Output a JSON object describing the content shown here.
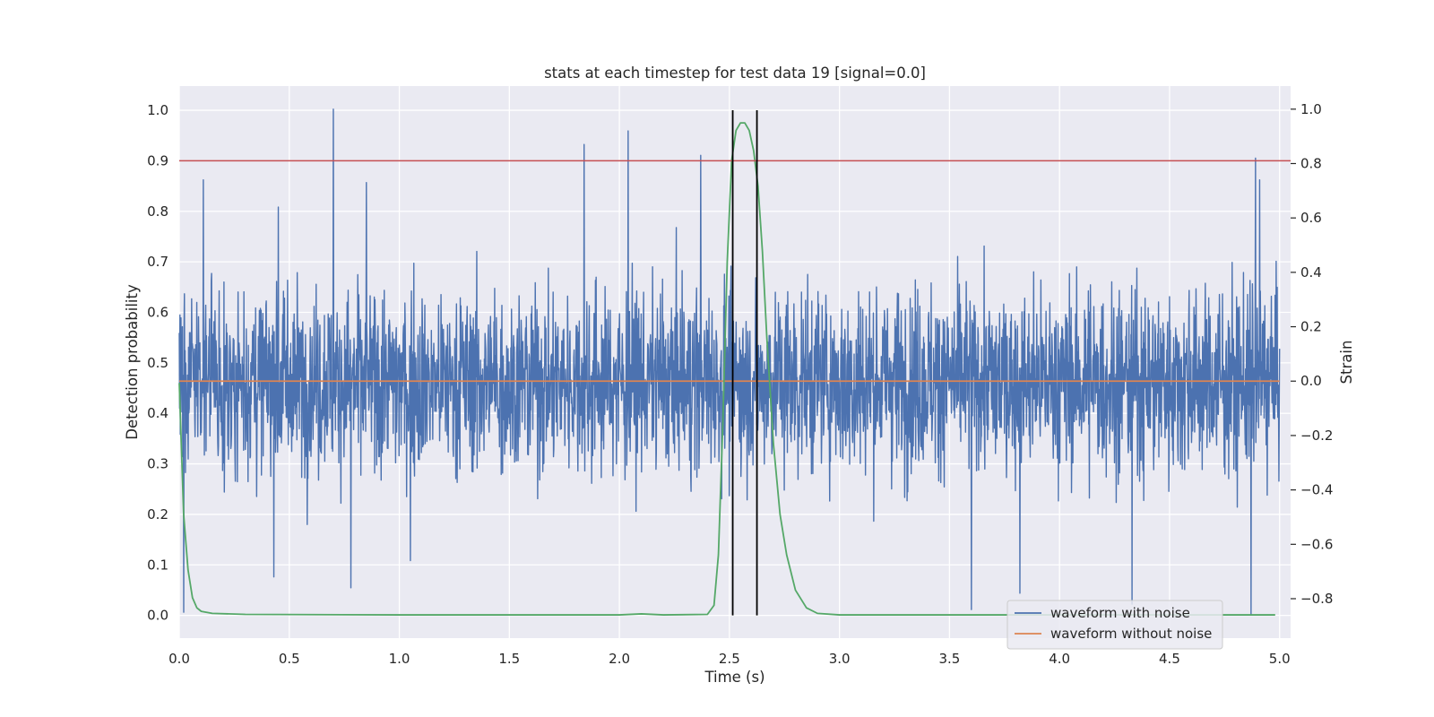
{
  "chart_data": {
    "type": "line",
    "title": "stats at each timestep for test data 19 [signal=0.0]",
    "xlabel": "Time (s)",
    "ylabel": "Detection probability",
    "ylabel_right": "Strain",
    "xlim": [
      0.0,
      5.05
    ],
    "ylim": [
      -0.045,
      1.048
    ],
    "ylim_right": [
      -0.945,
      1.085
    ],
    "x_ticks": [
      0.0,
      0.5,
      1.0,
      1.5,
      2.0,
      2.5,
      3.0,
      3.5,
      4.0,
      4.5,
      5.0
    ],
    "x_tick_labels": [
      "0.0",
      "0.5",
      "1.0",
      "1.5",
      "2.0",
      "2.5",
      "3.0",
      "3.5",
      "4.0",
      "4.5",
      "5.0"
    ],
    "y_ticks": [
      0.0,
      0.1,
      0.2,
      0.3,
      0.4,
      0.5,
      0.6,
      0.7,
      0.8,
      0.9,
      1.0
    ],
    "y_tick_labels": [
      "0.0",
      "0.1",
      "0.2",
      "0.3",
      "0.4",
      "0.5",
      "0.6",
      "0.7",
      "0.8",
      "0.9",
      "1.0"
    ],
    "y_right_ticks": [
      -0.8,
      -0.6,
      -0.4,
      -0.2,
      0.0,
      0.2,
      0.4,
      0.6,
      0.8,
      1.0
    ],
    "y_right_tick_labels": [
      "−0.8",
      "−0.6",
      "−0.4",
      "−0.2",
      "0.0",
      "0.2",
      "0.4",
      "0.6",
      "0.8",
      "1.0"
    ],
    "grid": true,
    "legend_position": "bottom-right",
    "series": [
      {
        "name": "waveform with noise",
        "axis": "right",
        "color": "#4c72b0",
        "x_range": [
          0.0,
          5.0
        ],
        "baseline": 0.0,
        "noise_amplitude": 0.3,
        "spikes": [
          {
            "x": 0.02,
            "y": -0.85
          },
          {
            "x": 0.11,
            "y": 0.74
          },
          {
            "x": 0.43,
            "y": -0.72
          },
          {
            "x": 0.45,
            "y": 0.64
          },
          {
            "x": 0.7,
            "y": 1.0
          },
          {
            "x": 0.78,
            "y": -0.76
          },
          {
            "x": 0.85,
            "y": 0.73
          },
          {
            "x": 1.05,
            "y": -0.66
          },
          {
            "x": 1.84,
            "y": 0.87
          },
          {
            "x": 2.04,
            "y": 0.92
          },
          {
            "x": 2.37,
            "y": 0.83
          },
          {
            "x": 3.6,
            "y": -0.84
          },
          {
            "x": 3.82,
            "y": -0.78
          },
          {
            "x": 4.33,
            "y": -0.82
          },
          {
            "x": 4.87,
            "y": -0.86
          },
          {
            "x": 4.89,
            "y": 0.82
          },
          {
            "x": 4.91,
            "y": 0.74
          }
        ]
      },
      {
        "name": "waveform without noise",
        "axis": "right",
        "color": "#dd8452",
        "x": [
          0.0,
          5.0
        ],
        "y": [
          0.0,
          0.0
        ]
      },
      {
        "axis": "left",
        "color": "#55a868",
        "x": [
          0.0,
          0.02,
          0.04,
          0.06,
          0.08,
          0.1,
          0.15,
          0.3,
          1.0,
          2.0,
          2.1,
          2.2,
          2.4,
          2.43,
          2.45,
          2.47,
          2.49,
          2.51,
          2.53,
          2.55,
          2.57,
          2.59,
          2.61,
          2.63,
          2.65,
          2.67,
          2.7,
          2.73,
          2.76,
          2.8,
          2.85,
          2.9,
          3.0,
          4.0,
          4.98
        ],
        "y": [
          0.46,
          0.2,
          0.09,
          0.035,
          0.015,
          0.008,
          0.004,
          0.002,
          0.001,
          0.001,
          0.003,
          0.001,
          0.002,
          0.02,
          0.12,
          0.38,
          0.7,
          0.9,
          0.96,
          0.975,
          0.975,
          0.96,
          0.92,
          0.85,
          0.72,
          0.55,
          0.34,
          0.2,
          0.12,
          0.05,
          0.015,
          0.004,
          0.001,
          0.001,
          0.001
        ]
      }
    ],
    "reference_lines": [
      {
        "orientation": "horizontal",
        "axis": "left",
        "y": 0.9,
        "color": "#c44e52"
      },
      {
        "orientation": "vertical",
        "x": 2.515,
        "y_range": [
          0.0,
          1.0
        ],
        "color": "#000000"
      },
      {
        "orientation": "vertical",
        "x": 2.625,
        "y_range": [
          0.0,
          1.0
        ],
        "color": "#000000"
      }
    ]
  }
}
